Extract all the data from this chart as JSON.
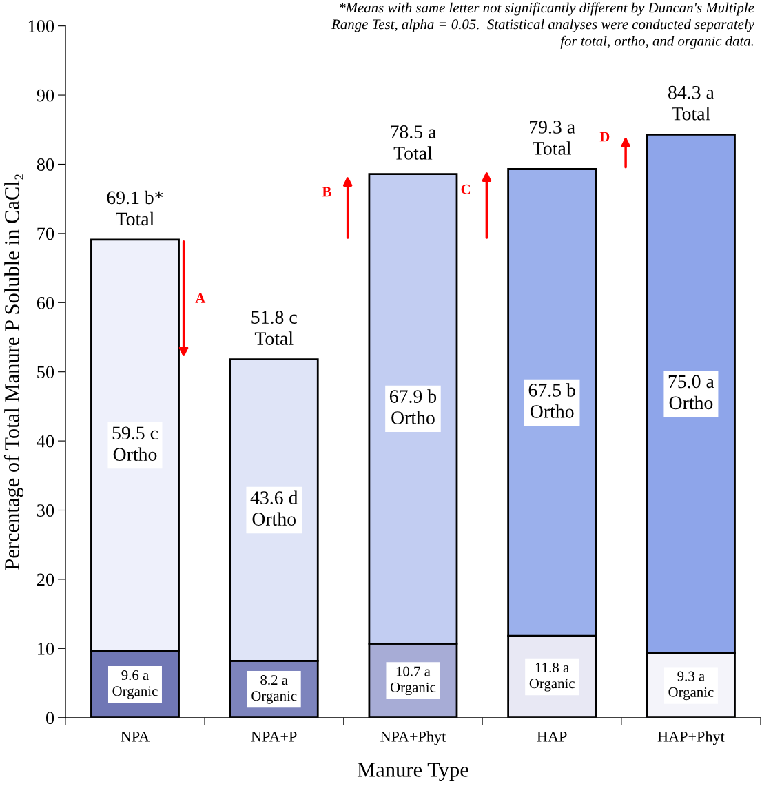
{
  "chart_data": {
    "type": "bar",
    "stacked": true,
    "xlabel": "Manure Type",
    "ylabel": "Percentage of Total Manure P Soluble in CaCl₂",
    "categories": [
      "NPA",
      "NPA+P",
      "NPA+Phyt",
      "HAP",
      "HAP+Phyt"
    ],
    "series": [
      {
        "name": "Organic",
        "colors": [
          "#7077b5",
          "#7d84bd",
          "#a7acd6",
          "#e8e8f4",
          "#f4f4fa"
        ],
        "values": [
          9.6,
          8.2,
          10.7,
          11.8,
          9.3
        ],
        "value_labels": [
          "9.6 a",
          "8.2 a",
          "10.7 a",
          "11.8 a",
          "9.3 a"
        ]
      },
      {
        "name": "Ortho",
        "colors": [
          "#eef0fb",
          "#dfe4f7",
          "#c2cdf2",
          "#9bb0ec",
          "#8ea5ea"
        ],
        "values": [
          59.5,
          43.6,
          67.9,
          67.5,
          75.0
        ],
        "value_labels": [
          "59.5 c",
          "43.6 d",
          "67.9 b",
          "67.5 b",
          "75.0 a"
        ]
      }
    ],
    "totals": [
      "69.1 b*\nTotal",
      "51.8 c\nTotal",
      "78.5 a\nTotal",
      "79.3 a\nTotal",
      "84.3 a\nTotal"
    ],
    "ylim": [
      0,
      100
    ],
    "yticks": [
      0,
      10,
      20,
      30,
      40,
      50,
      60,
      70,
      80,
      90,
      100
    ],
    "grid": false,
    "legend": false,
    "annotations": [
      "*Means with same letter not significantly different by Duncan's Multiple\nRange Test, alpha = 0.05.  Statistical analyses were conducted separately\nfor total, ortho, and organic data.",
      "A",
      "B",
      "C",
      "D"
    ]
  }
}
